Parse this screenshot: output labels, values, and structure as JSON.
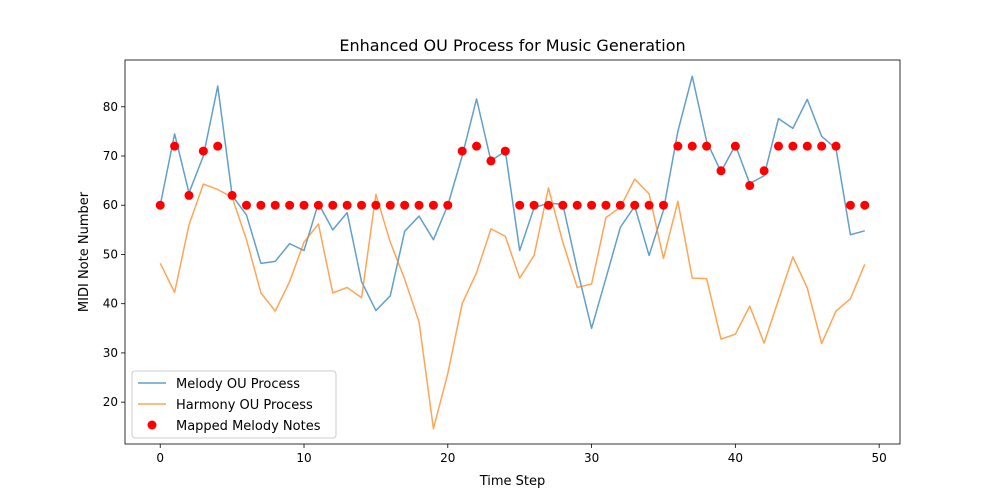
{
  "chart_data": {
    "type": "line",
    "title": "Enhanced OU Process for Music Generation",
    "xlabel": "Time Step",
    "ylabel": "MIDI Note Number",
    "xlim": [
      -2.45,
      51.45
    ],
    "ylim": [
      11.5,
      89.5
    ],
    "xticks": [
      0,
      10,
      20,
      30,
      40,
      50
    ],
    "yticks": [
      20,
      30,
      40,
      50,
      60,
      70,
      80
    ],
    "grid": false,
    "legend_position": "lower-left",
    "x": [
      0,
      1,
      2,
      3,
      4,
      5,
      6,
      7,
      8,
      9,
      10,
      11,
      12,
      13,
      14,
      15,
      16,
      17,
      18,
      19,
      20,
      21,
      22,
      23,
      24,
      25,
      26,
      27,
      28,
      29,
      30,
      31,
      32,
      33,
      34,
      35,
      36,
      37,
      38,
      39,
      40,
      41,
      42,
      43,
      44,
      45,
      46,
      47,
      48,
      49
    ],
    "series": [
      {
        "name": "Melody OU Process",
        "kind": "line",
        "color": "#1f77b4",
        "values": [
          60.0,
          74.5,
          62.5,
          70.0,
          84.2,
          62.0,
          58.0,
          48.2,
          48.6,
          52.2,
          50.8,
          60.4,
          55.0,
          58.5,
          44.5,
          38.6,
          41.6,
          54.7,
          57.8,
          53.0,
          60.0,
          70.0,
          81.6,
          69.0,
          71.0,
          50.8,
          59.5,
          60.4,
          60.2,
          47.0,
          35.0,
          45.2,
          55.5,
          59.8,
          49.8,
          59.0,
          75.0,
          86.2,
          73.0,
          66.8,
          72.2,
          64.4,
          66.0,
          77.6,
          75.6,
          81.5,
          74.0,
          71.5,
          54.0,
          54.8
        ]
      },
      {
        "name": "Harmony OU Process",
        "kind": "line",
        "color": "#ff7f0e",
        "values": [
          48.2,
          42.3,
          56.0,
          64.3,
          63.2,
          61.6,
          53.0,
          42.2,
          38.5,
          44.5,
          52.5,
          56.2,
          42.2,
          43.3,
          41.2,
          62.2,
          52.5,
          45.0,
          36.3,
          14.6,
          25.8,
          40.0,
          46.3,
          55.2,
          53.7,
          45.2,
          49.8,
          63.5,
          52.5,
          43.3,
          44.0,
          57.5,
          59.6,
          65.3,
          62.3,
          49.2,
          60.8,
          45.2,
          45.1,
          32.8,
          33.8,
          39.5,
          32.0,
          40.8,
          49.5,
          43.2,
          31.9,
          38.5,
          41.0,
          48.0
        ]
      },
      {
        "name": "Mapped Melody Notes",
        "kind": "scatter",
        "color": "#ff0000",
        "values": [
          60,
          72,
          62,
          71,
          72,
          62,
          60,
          60,
          60,
          60,
          60,
          60,
          60,
          60,
          60,
          60,
          60,
          60,
          60,
          60,
          60,
          71,
          72,
          69,
          71,
          60,
          60,
          60,
          60,
          60,
          60,
          60,
          60,
          60,
          60,
          60,
          72,
          72,
          72,
          67,
          72,
          64,
          67,
          72,
          72,
          72,
          72,
          72,
          60,
          60
        ]
      }
    ]
  }
}
